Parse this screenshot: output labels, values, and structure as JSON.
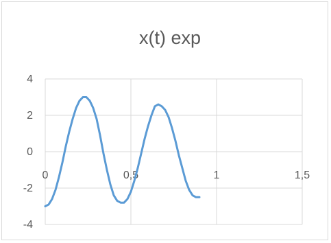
{
  "chart_data": {
    "type": "line",
    "title": "x(t) exp",
    "xlabel": "",
    "ylabel": "",
    "xlim": [
      0,
      1.5
    ],
    "ylim": [
      -4,
      4
    ],
    "x_ticks": [
      "0",
      "0,5",
      "1",
      "1,5"
    ],
    "y_ticks": [
      "4",
      "2",
      "0",
      "-2",
      "-4"
    ],
    "grid": true,
    "legend": "none",
    "series": [
      {
        "color": "#5b9bd5",
        "x": [
          0,
          0.02,
          0.04,
          0.06,
          0.08,
          0.1,
          0.12,
          0.14,
          0.16,
          0.18,
          0.2,
          0.22,
          0.24,
          0.26,
          0.28,
          0.3,
          0.32,
          0.34,
          0.36,
          0.38,
          0.4,
          0.42,
          0.44,
          0.46,
          0.48,
          0.5,
          0.52,
          0.54,
          0.56,
          0.58,
          0.6,
          0.62,
          0.64,
          0.66,
          0.68,
          0.7,
          0.72,
          0.74,
          0.76,
          0.78,
          0.8,
          0.82,
          0.84,
          0.86,
          0.88,
          0.9,
          0.92,
          0.94,
          0.96
        ],
        "y": [
          -3.0,
          -2.9,
          -2.6,
          -2.1,
          -1.4,
          -0.6,
          0.3,
          1.1,
          1.8,
          2.4,
          2.8,
          3.0,
          3.0,
          2.8,
          2.4,
          1.8,
          0.9,
          -0.1,
          -1.0,
          -1.8,
          -2.4,
          -2.7,
          -2.8,
          -2.8,
          -2.6,
          -2.2,
          -1.6,
          -0.9,
          -0.1,
          0.7,
          1.4,
          2.0,
          2.5,
          2.6,
          2.5,
          2.3,
          1.9,
          1.3,
          0.6,
          -0.2,
          -0.9,
          -1.6,
          -2.1,
          -2.4,
          -2.5,
          -2.5,
          null,
          null,
          null
        ]
      }
    ]
  }
}
